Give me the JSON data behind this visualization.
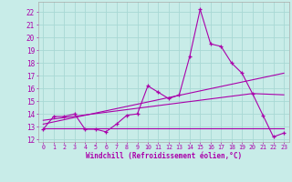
{
  "xlabel": "Windchill (Refroidissement éolien,°C)",
  "bg_color": "#c8ece8",
  "grid_color": "#a8d8d4",
  "line_color": "#aa00aa",
  "spine_color": "#aaaaaa",
  "xlim": [
    -0.5,
    23.5
  ],
  "ylim": [
    11.8,
    22.8
  ],
  "xticks": [
    0,
    1,
    2,
    3,
    4,
    5,
    6,
    7,
    8,
    9,
    10,
    11,
    12,
    13,
    14,
    15,
    16,
    17,
    18,
    19,
    20,
    21,
    22,
    23
  ],
  "yticks": [
    12,
    13,
    14,
    15,
    16,
    17,
    18,
    19,
    20,
    21,
    22
  ],
  "series_main_x": [
    0,
    1,
    2,
    3,
    4,
    5,
    6,
    7,
    8,
    9,
    10,
    11,
    12,
    13,
    14,
    15,
    16,
    17,
    18,
    19,
    20,
    21,
    22,
    23
  ],
  "series_main_y": [
    12.8,
    13.8,
    13.8,
    14.0,
    12.8,
    12.8,
    12.6,
    13.2,
    13.9,
    14.0,
    16.2,
    15.7,
    15.2,
    15.5,
    18.5,
    22.2,
    19.5,
    19.3,
    18.0,
    17.2,
    15.6,
    13.9,
    12.2,
    12.5
  ],
  "line1_x": [
    0,
    23
  ],
  "line1_y": [
    12.9,
    12.9
  ],
  "line2_x": [
    0,
    23
  ],
  "line2_y": [
    13.2,
    17.2
  ],
  "line3_x": [
    0,
    20,
    23
  ],
  "line3_y": [
    13.5,
    15.6,
    15.5
  ]
}
